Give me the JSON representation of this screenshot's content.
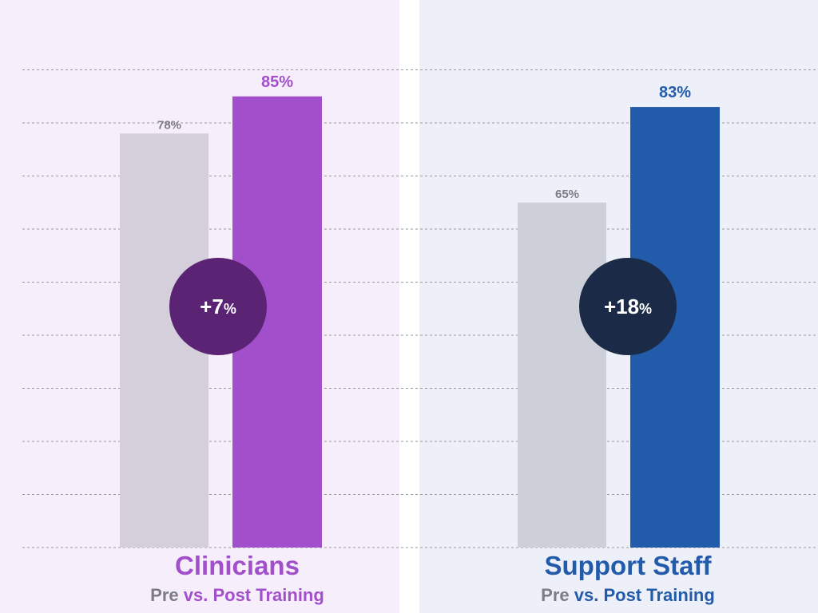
{
  "chart_data": {
    "type": "bar",
    "ylim": [
      0,
      100
    ],
    "grid": true,
    "groups": [
      {
        "title": "Clinicians",
        "subtitle_pre": "Pre",
        "subtitle_rest": " vs. Post Training",
        "pre": 78,
        "post": 85,
        "pre_label": "78%",
        "post_label": "85%",
        "delta_label": "+7",
        "delta_unit": "%",
        "accent": "#a24fcb",
        "circle": "#5a2373",
        "pre_color": "#d5cedb"
      },
      {
        "title": "Support Staff",
        "subtitle_pre": "Pre",
        "subtitle_rest": " vs. Post Training",
        "pre": 65,
        "post": 83,
        "pre_label": "65%",
        "post_label": "83%",
        "delta_label": "+18",
        "delta_unit": "%",
        "accent": "#235bab",
        "circle": "#1b2b47",
        "pre_color": "#cdd0d9"
      }
    ]
  }
}
